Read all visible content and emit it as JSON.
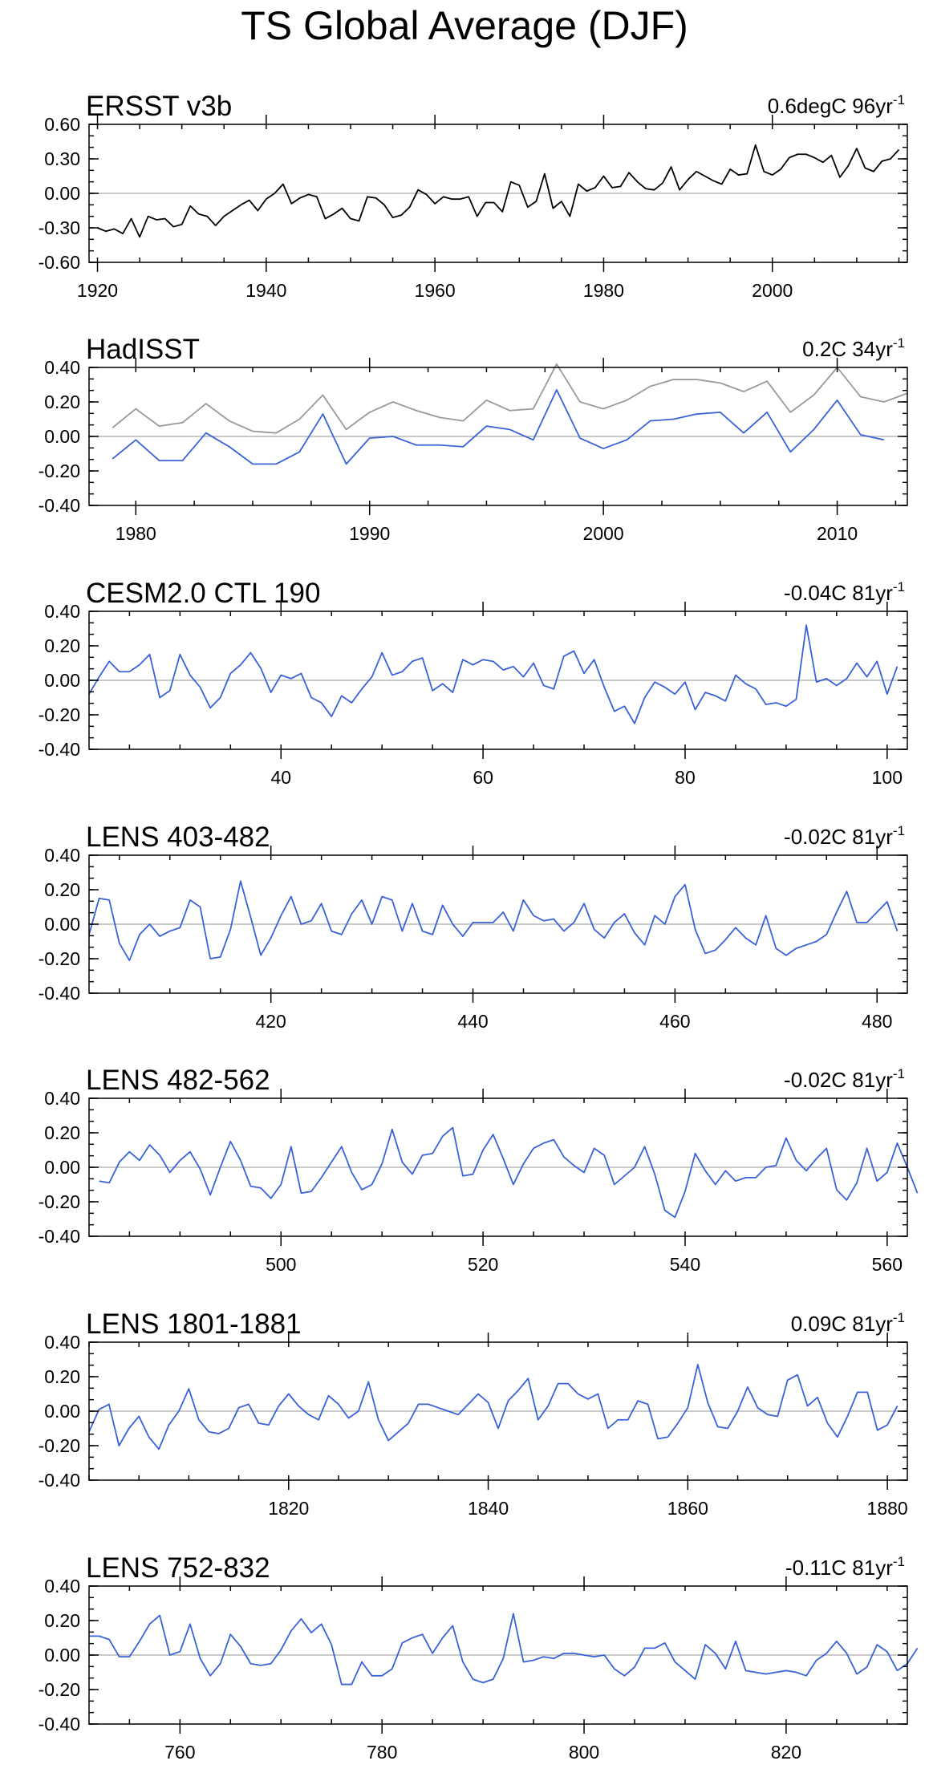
{
  "title": "TS Global Average (DJF)",
  "colors": {
    "blue": "#3a62d8",
    "black": "#000000",
    "gray": "#9a9a9a",
    "zero": "#b8b8b8"
  },
  "chart_data": [
    {
      "type": "line",
      "title": "ERSST v3b",
      "trend": {
        "value": "0.6degC 96yr",
        "exp": "-1"
      },
      "xlim": [
        1919,
        2016
      ],
      "ylim": [
        -0.6,
        0.6
      ],
      "yticks": [
        0.6,
        0.3,
        0.0,
        -0.3,
        -0.6
      ],
      "ytick_labels": [
        "0.60",
        "0.30",
        "0.00",
        "-0.30",
        "-0.60"
      ],
      "xticks": [
        1920,
        1940,
        1960,
        1980,
        2000
      ],
      "xtick_labels": [
        "1920",
        "1940",
        "1960",
        "1980",
        "2000"
      ],
      "series": [
        {
          "name": "ERSST v3b",
          "color": "#000000",
          "x_start": 1920,
          "values": [
            -0.3,
            -0.33,
            -0.31,
            -0.35,
            -0.22,
            -0.38,
            -0.2,
            -0.23,
            -0.22,
            -0.29,
            -0.27,
            -0.11,
            -0.18,
            -0.2,
            -0.28,
            -0.2,
            -0.15,
            -0.1,
            -0.06,
            -0.15,
            -0.05,
            0.0,
            0.08,
            -0.09,
            -0.04,
            -0.01,
            -0.03,
            -0.22,
            -0.18,
            -0.13,
            -0.22,
            -0.24,
            -0.03,
            -0.04,
            -0.1,
            -0.21,
            -0.19,
            -0.12,
            0.03,
            -0.01,
            -0.09,
            -0.03,
            -0.05,
            -0.05,
            -0.03,
            -0.2,
            -0.08,
            -0.08,
            -0.16,
            0.1,
            0.07,
            -0.12,
            -0.07,
            0.17,
            -0.13,
            -0.07,
            -0.2,
            0.08,
            0.02,
            0.05,
            0.15,
            0.05,
            0.06,
            0.18,
            0.1,
            0.04,
            0.03,
            0.09,
            0.23,
            0.03,
            0.12,
            0.19,
            0.15,
            0.11,
            0.08,
            0.21,
            0.16,
            0.17,
            0.42,
            0.19,
            0.16,
            0.21,
            0.31,
            0.34,
            0.34,
            0.31,
            0.27,
            0.33,
            0.14,
            0.24,
            0.39,
            0.22,
            0.19,
            0.28,
            0.3,
            0.38
          ]
        }
      ]
    },
    {
      "type": "line",
      "title": "HadISST",
      "trend": {
        "value": "0.2C 34yr",
        "exp": "-1"
      },
      "xlim": [
        1978,
        2013
      ],
      "ylim": [
        -0.4,
        0.4
      ],
      "yticks": [
        0.4,
        0.2,
        0.0,
        -0.2,
        -0.4
      ],
      "ytick_labels": [
        "0.40",
        "0.20",
        "0.00",
        "-0.20",
        "-0.40"
      ],
      "xticks": [
        1980,
        1990,
        2000,
        2010
      ],
      "xtick_labels": [
        "1980",
        "1990",
        "2000",
        "2010"
      ],
      "series": [
        {
          "name": "HadISST (gray)",
          "color": "#9a9a9a",
          "x_start": 1979,
          "values": [
            0.05,
            0.16,
            0.06,
            0.08,
            0.19,
            0.09,
            0.03,
            0.02,
            0.1,
            0.24,
            0.04,
            0.14,
            0.2,
            0.15,
            0.11,
            0.09,
            0.21,
            0.15,
            0.16,
            0.42,
            0.2,
            0.16,
            0.21,
            0.29,
            0.33,
            0.33,
            0.31,
            0.26,
            0.32,
            0.14,
            0.24,
            0.4,
            0.23,
            0.2,
            0.25
          ]
        },
        {
          "name": "HadISST (blue)",
          "color": "#3a62d8",
          "x_start": 1979,
          "values": [
            -0.13,
            -0.02,
            -0.14,
            -0.14,
            0.02,
            -0.06,
            -0.16,
            -0.16,
            -0.09,
            0.13,
            -0.16,
            -0.01,
            0.0,
            -0.05,
            -0.05,
            -0.06,
            0.06,
            0.04,
            -0.02,
            0.27,
            -0.01,
            -0.07,
            -0.02,
            0.09,
            0.1,
            0.13,
            0.14,
            0.02,
            0.14,
            -0.09,
            0.04,
            0.21,
            0.01,
            -0.02
          ]
        }
      ]
    },
    {
      "type": "line",
      "title": "CESM2.0 CTL 190",
      "trend": {
        "value": "-0.04C 81yr",
        "exp": "-1"
      },
      "xlim": [
        21,
        102
      ],
      "ylim": [
        -0.4,
        0.4
      ],
      "yticks": [
        0.4,
        0.2,
        0.0,
        -0.2,
        -0.4
      ],
      "ytick_labels": [
        "0.40",
        "0.20",
        "0.00",
        "-0.20",
        "-0.40"
      ],
      "xticks": [
        40,
        60,
        80,
        100
      ],
      "xtick_labels": [
        "40",
        "60",
        "80",
        "100"
      ],
      "series": [
        {
          "name": "CESM2.0 CTL 190",
          "color": "#3a62d8",
          "x_start": 21,
          "values": [
            -0.08,
            0.02,
            0.11,
            0.05,
            0.05,
            0.09,
            0.15,
            -0.1,
            -0.06,
            0.15,
            0.03,
            -0.04,
            -0.16,
            -0.1,
            0.04,
            0.09,
            0.16,
            0.07,
            -0.07,
            0.03,
            0.01,
            0.04,
            -0.1,
            -0.13,
            -0.21,
            -0.09,
            -0.13,
            -0.05,
            0.02,
            0.16,
            0.03,
            0.05,
            0.11,
            0.13,
            -0.06,
            -0.02,
            -0.07,
            0.12,
            0.09,
            0.12,
            0.11,
            0.06,
            0.08,
            0.02,
            0.1,
            -0.03,
            -0.05,
            0.14,
            0.17,
            0.04,
            0.12,
            -0.04,
            -0.18,
            -0.15,
            -0.25,
            -0.1,
            -0.01,
            -0.04,
            -0.08,
            -0.01,
            -0.17,
            -0.07,
            -0.09,
            -0.12,
            0.03,
            -0.02,
            -0.05,
            -0.14,
            -0.13,
            -0.15,
            -0.11,
            0.32,
            -0.01,
            0.01,
            -0.03,
            0.01,
            0.1,
            0.02,
            0.11,
            -0.08,
            0.08
          ]
        }
      ]
    },
    {
      "type": "line",
      "title": "LENS 403-482",
      "trend": {
        "value": "-0.02C 81yr",
        "exp": "-1"
      },
      "xlim": [
        402,
        483
      ],
      "ylim": [
        -0.4,
        0.4
      ],
      "yticks": [
        0.4,
        0.2,
        0.0,
        -0.2,
        -0.4
      ],
      "ytick_labels": [
        "0.40",
        "0.20",
        "0.00",
        "-0.20",
        "-0.40"
      ],
      "xticks": [
        420,
        440,
        460,
        480
      ],
      "xtick_labels": [
        "420",
        "440",
        "460",
        "480"
      ],
      "series": [
        {
          "name": "LENS 403-482",
          "color": "#3a62d8",
          "x_start": 402,
          "values": [
            -0.06,
            0.15,
            0.14,
            -0.11,
            -0.21,
            -0.06,
            0.0,
            -0.07,
            -0.04,
            -0.02,
            0.14,
            0.1,
            -0.2,
            -0.19,
            -0.03,
            0.25,
            0.04,
            -0.18,
            -0.08,
            0.05,
            0.16,
            0.0,
            0.02,
            0.12,
            -0.04,
            -0.06,
            0.06,
            0.14,
            0.0,
            0.16,
            0.14,
            -0.04,
            0.12,
            -0.04,
            -0.06,
            0.11,
            0.0,
            -0.07,
            0.01,
            0.01,
            0.01,
            0.07,
            -0.04,
            0.14,
            0.05,
            0.02,
            0.03,
            -0.04,
            0.01,
            0.12,
            -0.03,
            -0.08,
            0.01,
            0.06,
            -0.05,
            -0.12,
            0.05,
            0.0,
            0.16,
            0.23,
            -0.03,
            -0.17,
            -0.15,
            -0.09,
            -0.02,
            -0.08,
            -0.12,
            0.05,
            -0.14,
            -0.18,
            -0.14,
            -0.12,
            -0.1,
            -0.06,
            0.07,
            0.19,
            0.01,
            0.01,
            0.07,
            0.13,
            -0.04
          ]
        }
      ]
    },
    {
      "type": "line",
      "title": "LENS 482-562",
      "trend": {
        "value": "-0.02C 81yr",
        "exp": "-1"
      },
      "xlim": [
        481,
        562
      ],
      "ylim": [
        -0.4,
        0.4
      ],
      "yticks": [
        0.4,
        0.2,
        0.0,
        -0.2,
        -0.4
      ],
      "ytick_labels": [
        "0.40",
        "0.20",
        "0.00",
        "-0.20",
        "-0.40"
      ],
      "xticks": [
        500,
        520,
        540,
        560
      ],
      "xtick_labels": [
        "500",
        "520",
        "540",
        "560"
      ],
      "series": [
        {
          "name": "LENS 482-562",
          "color": "#3a62d8",
          "x_start": 482,
          "values": [
            -0.08,
            -0.09,
            0.03,
            0.09,
            0.04,
            0.13,
            0.07,
            -0.03,
            0.04,
            0.09,
            -0.01,
            -0.16,
            0.0,
            0.15,
            0.04,
            -0.11,
            -0.12,
            -0.18,
            -0.1,
            0.12,
            -0.15,
            -0.14,
            -0.06,
            0.03,
            0.12,
            -0.03,
            -0.13,
            -0.1,
            0.02,
            0.22,
            0.03,
            -0.04,
            0.07,
            0.08,
            0.18,
            0.23,
            -0.05,
            -0.04,
            0.1,
            0.19,
            0.05,
            -0.1,
            0.02,
            0.11,
            0.14,
            0.16,
            0.06,
            0.01,
            -0.03,
            0.11,
            0.07,
            -0.1,
            -0.05,
            0.0,
            0.12,
            -0.04,
            -0.25,
            -0.29,
            -0.14,
            0.08,
            -0.02,
            -0.1,
            -0.02,
            -0.08,
            -0.06,
            -0.06,
            0.0,
            0.01,
            0.17,
            0.04,
            -0.02,
            0.05,
            0.11,
            -0.13,
            -0.19,
            -0.09,
            0.11,
            -0.08,
            -0.03,
            0.14,
            0.0,
            -0.15
          ]
        }
      ]
    },
    {
      "type": "line",
      "title": "LENS 1801-1881",
      "trend": {
        "value": "0.09C 81yr",
        "exp": "-1"
      },
      "xlim": [
        1800,
        1882
      ],
      "ylim": [
        -0.4,
        0.4
      ],
      "yticks": [
        0.4,
        0.2,
        0.0,
        -0.2,
        -0.4
      ],
      "ytick_labels": [
        "0.40",
        "0.20",
        "0.00",
        "-0.20",
        "-0.40"
      ],
      "xticks": [
        1820,
        1840,
        1860,
        1880
      ],
      "xtick_labels": [
        "1820",
        "1840",
        "1860",
        "1880"
      ],
      "series": [
        {
          "name": "LENS 1801-1881",
          "color": "#3a62d8",
          "x_start": 1800,
          "values": [
            -0.12,
            0.01,
            0.04,
            -0.2,
            -0.1,
            -0.03,
            -0.15,
            -0.22,
            -0.08,
            0.0,
            0.13,
            -0.05,
            -0.12,
            -0.13,
            -0.1,
            0.02,
            0.04,
            -0.07,
            -0.08,
            0.03,
            0.1,
            0.03,
            -0.02,
            -0.05,
            0.09,
            0.04,
            -0.04,
            0.0,
            0.17,
            -0.05,
            -0.17,
            -0.12,
            -0.07,
            0.04,
            0.04,
            0.02,
            0.0,
            -0.02,
            0.04,
            0.1,
            0.05,
            -0.1,
            0.06,
            0.12,
            0.19,
            -0.05,
            0.03,
            0.16,
            0.16,
            0.1,
            0.07,
            0.1,
            -0.1,
            -0.05,
            -0.05,
            0.06,
            0.04,
            -0.16,
            -0.15,
            -0.07,
            0.02,
            0.27,
            0.05,
            -0.09,
            -0.1,
            0.0,
            0.14,
            0.02,
            -0.02,
            -0.03,
            0.18,
            0.21,
            0.03,
            0.08,
            -0.07,
            -0.15,
            -0.03,
            0.11,
            0.11,
            -0.11,
            -0.08,
            0.03
          ]
        }
      ]
    },
    {
      "type": "line",
      "title": "LENS 752-832",
      "trend": {
        "value": "-0.11C 81yr",
        "exp": "-1"
      },
      "xlim": [
        751,
        832
      ],
      "ylim": [
        -0.4,
        0.4
      ],
      "yticks": [
        0.4,
        0.2,
        0.0,
        -0.2,
        -0.4
      ],
      "ytick_labels": [
        "0.40",
        "0.20",
        "0.00",
        "-0.20",
        "-0.40"
      ],
      "xticks": [
        760,
        780,
        800,
        820
      ],
      "xtick_labels": [
        "760",
        "780",
        "800",
        "820"
      ],
      "series": [
        {
          "name": "LENS 752-832",
          "color": "#3a62d8",
          "x_start": 751,
          "values": [
            0.11,
            0.11,
            0.09,
            -0.01,
            -0.01,
            0.08,
            0.18,
            0.23,
            0.0,
            0.02,
            0.18,
            -0.02,
            -0.12,
            -0.05,
            0.12,
            0.05,
            -0.05,
            -0.06,
            -0.05,
            0.03,
            0.14,
            0.21,
            0.13,
            0.18,
            0.06,
            -0.17,
            -0.17,
            -0.04,
            -0.12,
            -0.12,
            -0.08,
            0.07,
            0.1,
            0.12,
            0.01,
            0.1,
            0.17,
            -0.04,
            -0.14,
            -0.16,
            -0.14,
            -0.02,
            0.24,
            -0.04,
            -0.03,
            -0.01,
            -0.02,
            0.01,
            0.01,
            0.0,
            -0.01,
            0.0,
            -0.08,
            -0.12,
            -0.07,
            0.04,
            0.04,
            0.07,
            -0.04,
            -0.09,
            -0.14,
            0.06,
            0.01,
            -0.08,
            0.08,
            -0.09,
            -0.1,
            -0.11,
            -0.1,
            -0.09,
            -0.1,
            -0.12,
            -0.03,
            0.01,
            0.08,
            0.01,
            -0.11,
            -0.07,
            0.06,
            0.02,
            -0.09,
            -0.05,
            0.04
          ]
        }
      ]
    }
  ]
}
